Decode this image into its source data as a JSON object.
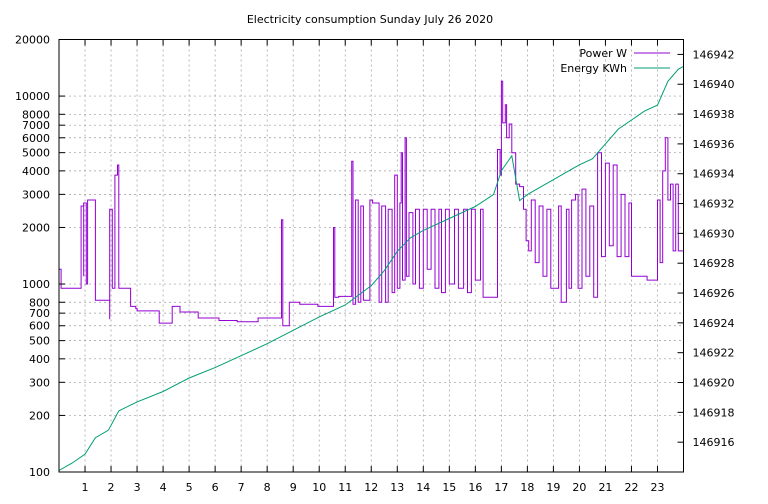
{
  "chart_data": {
    "type": "line",
    "title": "Electricity consumption Sunday July 26 2020",
    "x_ticks": [
      "1",
      "2",
      "3",
      "4",
      "5",
      "6",
      "7",
      "8",
      "9",
      "10",
      "11",
      "12",
      "13",
      "14",
      "15",
      "16",
      "17",
      "18",
      "19",
      "20",
      "21",
      "22",
      "23"
    ],
    "xlim": [
      0,
      24
    ],
    "y_left": {
      "scale": "log",
      "ylim": [
        100,
        20000
      ],
      "ticks": [
        100,
        200,
        300,
        400,
        500,
        600,
        700,
        800,
        1000,
        2000,
        3000,
        4000,
        5000,
        6000,
        7000,
        8000,
        10000,
        20000
      ],
      "tick_labels": [
        "100",
        "200",
        "300",
        "400",
        "500",
        "600",
        "700",
        "800",
        "1000",
        "2000",
        "3000",
        "4000",
        "5000",
        "6000",
        "7000",
        "8000",
        "10000",
        "20000"
      ]
    },
    "y_right": {
      "scale": "linear",
      "ylim": [
        146914,
        146943
      ],
      "ticks": [
        146916,
        146918,
        146920,
        146922,
        146924,
        146926,
        146928,
        146930,
        146932,
        146934,
        146936,
        146938,
        146940,
        146942
      ],
      "tick_labels": [
        "146916",
        "146918",
        "146920",
        "146922",
        "146924",
        "146926",
        "146928",
        "146930",
        "146932",
        "146934",
        "146936",
        "146938",
        "146940",
        "146942"
      ]
    },
    "grid": true,
    "legend_position": "top-right",
    "series": [
      {
        "name": "Power W",
        "axis": "left",
        "color": "#9400d3",
        "shape": "step",
        "points": [
          [
            0.0,
            1200
          ],
          [
            0.08,
            950
          ],
          [
            0.85,
            950
          ],
          [
            0.85,
            2600
          ],
          [
            0.95,
            1100
          ],
          [
            0.95,
            2700
          ],
          [
            1.05,
            1000
          ],
          [
            1.1,
            1700
          ],
          [
            1.1,
            2800
          ],
          [
            1.4,
            2800
          ],
          [
            1.4,
            820
          ],
          [
            1.9,
            820
          ],
          [
            1.95,
            650
          ],
          [
            1.95,
            2500
          ],
          [
            2.05,
            950
          ],
          [
            2.15,
            3800
          ],
          [
            2.25,
            4300
          ],
          [
            2.3,
            1100
          ],
          [
            2.3,
            950
          ],
          [
            2.7,
            950
          ],
          [
            2.75,
            760
          ],
          [
            2.95,
            740
          ],
          [
            3.0,
            720
          ],
          [
            3.8,
            720
          ],
          [
            3.85,
            620
          ],
          [
            4.3,
            620
          ],
          [
            4.35,
            760
          ],
          [
            4.6,
            760
          ],
          [
            4.65,
            710
          ],
          [
            5.3,
            710
          ],
          [
            5.35,
            660
          ],
          [
            6.1,
            660
          ],
          [
            6.15,
            640
          ],
          [
            6.8,
            640
          ],
          [
            6.85,
            630
          ],
          [
            7.6,
            630
          ],
          [
            7.65,
            660
          ],
          [
            8.5,
            660
          ],
          [
            8.55,
            2200
          ],
          [
            8.6,
            600
          ],
          [
            8.8,
            600
          ],
          [
            8.85,
            800
          ],
          [
            9.2,
            800
          ],
          [
            9.25,
            780
          ],
          [
            9.9,
            780
          ],
          [
            9.95,
            760
          ],
          [
            10.5,
            760
          ],
          [
            10.55,
            2000
          ],
          [
            10.6,
            850
          ],
          [
            10.7,
            850
          ],
          [
            10.75,
            860
          ],
          [
            11.2,
            860
          ],
          [
            11.25,
            4500
          ],
          [
            11.3,
            780
          ],
          [
            11.4,
            2800
          ],
          [
            11.5,
            800
          ],
          [
            11.6,
            2600
          ],
          [
            11.7,
            820
          ],
          [
            11.9,
            820
          ],
          [
            11.95,
            2800
          ],
          [
            12.05,
            2700
          ],
          [
            12.25,
            2700
          ],
          [
            12.3,
            800
          ],
          [
            12.4,
            2600
          ],
          [
            12.55,
            800
          ],
          [
            12.65,
            2500
          ],
          [
            12.8,
            900
          ],
          [
            12.9,
            3800
          ],
          [
            13.0,
            950
          ],
          [
            13.1,
            2700
          ],
          [
            13.15,
            5000
          ],
          [
            13.2,
            1050
          ],
          [
            13.3,
            6000
          ],
          [
            13.35,
            1100
          ],
          [
            13.45,
            2400
          ],
          [
            13.6,
            1000
          ],
          [
            13.7,
            2500
          ],
          [
            13.85,
            950
          ],
          [
            14.0,
            2500
          ],
          [
            14.15,
            1200
          ],
          [
            14.3,
            2500
          ],
          [
            14.45,
            950
          ],
          [
            14.6,
            2500
          ],
          [
            14.7,
            900
          ],
          [
            14.85,
            2500
          ],
          [
            15.0,
            1000
          ],
          [
            15.2,
            2500
          ],
          [
            15.35,
            950
          ],
          [
            15.55,
            2500
          ],
          [
            15.7,
            900
          ],
          [
            15.85,
            2500
          ],
          [
            16.0,
            1050
          ],
          [
            16.2,
            2500
          ],
          [
            16.3,
            850
          ],
          [
            16.7,
            850
          ],
          [
            16.85,
            5200
          ],
          [
            16.95,
            3800
          ],
          [
            17.0,
            12000
          ],
          [
            17.05,
            7200
          ],
          [
            17.15,
            9000
          ],
          [
            17.2,
            6000
          ],
          [
            17.3,
            7100
          ],
          [
            17.4,
            5000
          ],
          [
            17.55,
            3400
          ],
          [
            17.7,
            3300
          ],
          [
            17.85,
            2500
          ],
          [
            17.95,
            1700
          ],
          [
            18.05,
            1500
          ],
          [
            18.15,
            2800
          ],
          [
            18.3,
            1300
          ],
          [
            18.45,
            2600
          ],
          [
            18.6,
            1100
          ],
          [
            18.75,
            2500
          ],
          [
            18.9,
            950
          ],
          [
            19.05,
            950
          ],
          [
            19.2,
            2600
          ],
          [
            19.3,
            800
          ],
          [
            19.5,
            2500
          ],
          [
            19.6,
            950
          ],
          [
            19.7,
            2800
          ],
          [
            19.85,
            3000
          ],
          [
            19.95,
            950
          ],
          [
            20.1,
            3200
          ],
          [
            20.25,
            1100
          ],
          [
            20.4,
            2600
          ],
          [
            20.55,
            850
          ],
          [
            20.7,
            5000
          ],
          [
            20.85,
            1400
          ],
          [
            21.0,
            4400
          ],
          [
            21.15,
            1600
          ],
          [
            21.3,
            4300
          ],
          [
            21.45,
            1400
          ],
          [
            21.6,
            3000
          ],
          [
            21.75,
            1400
          ],
          [
            21.9,
            2700
          ],
          [
            22.0,
            1100
          ],
          [
            22.1,
            1100
          ],
          [
            22.5,
            1100
          ],
          [
            22.6,
            1050
          ],
          [
            22.9,
            1050
          ],
          [
            23.0,
            2800
          ],
          [
            23.1,
            1300
          ],
          [
            23.2,
            4000
          ],
          [
            23.3,
            6000
          ],
          [
            23.4,
            2800
          ],
          [
            23.5,
            3400
          ],
          [
            23.6,
            1500
          ],
          [
            23.7,
            3400
          ],
          [
            23.8,
            1500
          ],
          [
            24.0,
            1500
          ]
        ]
      },
      {
        "name": "Energy KWh",
        "axis": "right",
        "color": "#009e73",
        "shape": "line",
        "points": [
          [
            0.0,
            146914.1
          ],
          [
            0.5,
            146914.6
          ],
          [
            1.0,
            146915.2
          ],
          [
            1.4,
            146916.3
          ],
          [
            1.9,
            146916.8
          ],
          [
            2.3,
            146918.1
          ],
          [
            3.0,
            146918.7
          ],
          [
            4.0,
            146919.4
          ],
          [
            5.0,
            146920.3
          ],
          [
            6.0,
            146921.0
          ],
          [
            7.0,
            146921.8
          ],
          [
            8.0,
            146922.6
          ],
          [
            9.0,
            146923.5
          ],
          [
            10.0,
            146924.4
          ],
          [
            11.0,
            146925.2
          ],
          [
            12.0,
            146926.5
          ],
          [
            12.5,
            146927.5
          ],
          [
            13.0,
            146928.8
          ],
          [
            13.5,
            146929.7
          ],
          [
            14.0,
            146930.2
          ],
          [
            15.0,
            146931.0
          ],
          [
            16.0,
            146931.8
          ],
          [
            16.7,
            146932.6
          ],
          [
            17.0,
            146934.2
          ],
          [
            17.4,
            146935.2
          ],
          [
            17.7,
            146932.2
          ],
          [
            18.0,
            146932.6
          ],
          [
            18.5,
            146933.1
          ],
          [
            19.0,
            146933.6
          ],
          [
            19.5,
            146934.1
          ],
          [
            20.0,
            146934.6
          ],
          [
            20.5,
            146935.0
          ],
          [
            21.0,
            146936.0
          ],
          [
            21.5,
            146937.0
          ],
          [
            22.0,
            146937.6
          ],
          [
            22.5,
            146938.2
          ],
          [
            23.0,
            146938.6
          ],
          [
            23.4,
            146940.2
          ],
          [
            23.8,
            146941.0
          ],
          [
            24.0,
            146941.2
          ]
        ]
      }
    ]
  }
}
